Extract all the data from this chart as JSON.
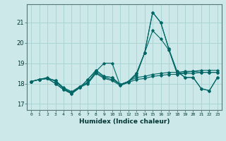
{
  "title": "",
  "xlabel": "Humidex (Indice chaleur)",
  "bg_color": "#cce8e8",
  "grid_color": "#aad4d4",
  "line_color": "#006666",
  "x_values": [
    0,
    1,
    2,
    3,
    4,
    5,
    6,
    7,
    8,
    9,
    10,
    11,
    12,
    13,
    14,
    15,
    16,
    17,
    18,
    19,
    20,
    21,
    22,
    23
  ],
  "series": [
    [
      18.1,
      18.2,
      18.25,
      18.15,
      17.8,
      17.6,
      17.85,
      18.05,
      18.55,
      18.3,
      18.2,
      17.95,
      18.1,
      18.3,
      18.35,
      18.45,
      18.5,
      18.55,
      18.55,
      18.6,
      18.6,
      18.65,
      18.65,
      18.65
    ],
    [
      18.1,
      18.2,
      18.25,
      18.15,
      17.75,
      17.55,
      17.8,
      18.0,
      18.5,
      18.25,
      18.15,
      17.9,
      18.05,
      18.2,
      18.25,
      18.35,
      18.4,
      18.45,
      18.45,
      18.5,
      18.5,
      18.55,
      18.55,
      18.55
    ],
    [
      18.1,
      18.2,
      18.25,
      18.0,
      17.7,
      17.5,
      17.8,
      18.2,
      18.65,
      18.35,
      18.3,
      17.95,
      18.1,
      18.5,
      19.5,
      21.5,
      21.0,
      19.7,
      18.6,
      18.3,
      18.3,
      17.75,
      17.65,
      18.3
    ],
    [
      18.1,
      18.2,
      18.25,
      18.0,
      17.7,
      17.5,
      17.8,
      18.2,
      18.65,
      18.35,
      18.3,
      17.95,
      18.1,
      18.5,
      19.5,
      21.5,
      21.0,
      19.7,
      18.6,
      18.3,
      18.3,
      17.75,
      17.65,
      18.3
    ],
    [
      18.1,
      18.2,
      18.3,
      18.1,
      17.75,
      17.55,
      17.85,
      18.05,
      18.6,
      19.0,
      19.0,
      17.9,
      18.1,
      18.4,
      19.5,
      20.6,
      20.2,
      19.65,
      18.5,
      18.55,
      18.6,
      18.55,
      18.55,
      18.55
    ]
  ],
  "ylim": [
    16.7,
    21.9
  ],
  "yticks": [
    17,
    18,
    19,
    20,
    21
  ],
  "xlim": [
    -0.5,
    23.5
  ]
}
